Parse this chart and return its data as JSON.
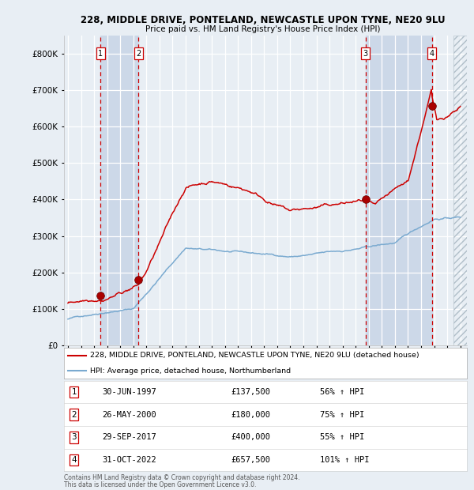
{
  "title1": "228, MIDDLE DRIVE, PONTELAND, NEWCASTLE UPON TYNE, NE20 9LU",
  "title2": "Price paid vs. HM Land Registry's House Price Index (HPI)",
  "legend_line1": "228, MIDDLE DRIVE, PONTELAND, NEWCASTLE UPON TYNE, NE20 9LU (detached house)",
  "legend_line2": "HPI: Average price, detached house, Northumberland",
  "footer1": "Contains HM Land Registry data © Crown copyright and database right 2024.",
  "footer2": "This data is licensed under the Open Government Licence v3.0.",
  "sales": [
    {
      "num": 1,
      "date": "30-JUN-1997",
      "price": 137500,
      "pct": "56%",
      "dir": "↑",
      "year": 1997.5
    },
    {
      "num": 2,
      "date": "26-MAY-2000",
      "price": 180000,
      "pct": "75%",
      "dir": "↑",
      "year": 2000.4
    },
    {
      "num": 3,
      "date": "29-SEP-2017",
      "price": 400000,
      "pct": "55%",
      "dir": "↑",
      "year": 2017.75
    },
    {
      "num": 4,
      "date": "31-OCT-2022",
      "price": 657500,
      "pct": "101%",
      "dir": "↑",
      "year": 2022.83
    }
  ],
  "hpi_color": "#7aaad0",
  "price_color": "#cc0000",
  "sale_marker_color": "#aa0000",
  "bg_color": "#e8eef4",
  "plot_bg": "#e8eef4",
  "shade_color": "#ccd8e8",
  "grid_color": "#ffffff",
  "vline_color": "#cc0000",
  "ylim": [
    0,
    850000
  ],
  "yticks": [
    0,
    100000,
    200000,
    300000,
    400000,
    500000,
    600000,
    700000,
    800000
  ],
  "xlim_start": 1994.7,
  "xlim_end": 2025.5,
  "xticks": [
    1995,
    1996,
    1997,
    1998,
    1999,
    2000,
    2001,
    2002,
    2003,
    2004,
    2005,
    2006,
    2007,
    2008,
    2009,
    2010,
    2011,
    2012,
    2013,
    2014,
    2015,
    2016,
    2017,
    2018,
    2019,
    2020,
    2021,
    2022,
    2023,
    2024,
    2025
  ]
}
